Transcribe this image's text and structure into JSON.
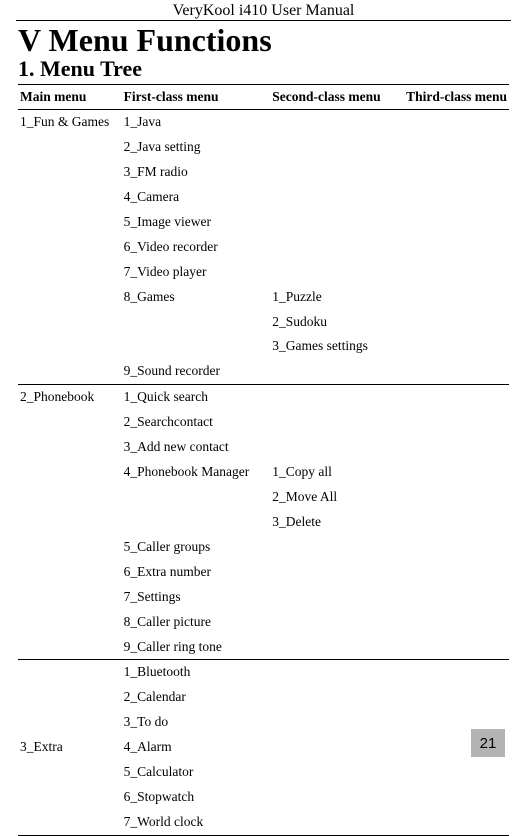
{
  "doc_header": "VeryKool i410 User Manual",
  "chapter_title": "V Menu Functions",
  "section_title": "1. Menu Tree",
  "page_number": "21",
  "table": {
    "headers": [
      "Main menu",
      "First-class menu",
      "Second-class menu",
      "Third-class menu"
    ],
    "rows": [
      {
        "main": "1_Fun & Games",
        "first": "1_Java",
        "second": "",
        "third": ""
      },
      {
        "main": "",
        "first": "2_Java setting",
        "second": "",
        "third": ""
      },
      {
        "main": "",
        "first": "3_FM radio",
        "second": "",
        "third": ""
      },
      {
        "main": "",
        "first": "4_Camera",
        "second": "",
        "third": ""
      },
      {
        "main": "",
        "first": "5_Image viewer",
        "second": "",
        "third": ""
      },
      {
        "main": "",
        "first": "6_Video recorder",
        "second": "",
        "third": ""
      },
      {
        "main": "",
        "first": "7_Video player",
        "second": "",
        "third": ""
      },
      {
        "main": "",
        "first": "8_Games",
        "second": "1_Puzzle",
        "third": ""
      },
      {
        "main": "",
        "first": "",
        "second": "2_Sudoku",
        "third": ""
      },
      {
        "main": "",
        "first": "",
        "second": "3_Games settings",
        "third": ""
      },
      {
        "main": "",
        "first": "9_Sound recorder",
        "second": "",
        "third": "",
        "sectionEnd": true
      },
      {
        "main": "2_Phonebook",
        "first": "1_Quick search",
        "second": "",
        "third": ""
      },
      {
        "main": "",
        "first": "2_Searchcontact",
        "second": "",
        "third": ""
      },
      {
        "main": "",
        "first": "3_Add new contact",
        "second": "",
        "third": ""
      },
      {
        "main": "",
        "first": "4_Phonebook Manager",
        "second": "1_Copy all",
        "third": ""
      },
      {
        "main": "",
        "first": "",
        "second": "2_Move All",
        "third": ""
      },
      {
        "main": "",
        "first": "",
        "second": "3_Delete",
        "third": ""
      },
      {
        "main": "",
        "first": "5_Caller groups",
        "second": "",
        "third": ""
      },
      {
        "main": "",
        "first": "6_Extra number",
        "second": "",
        "third": ""
      },
      {
        "main": "",
        "first": "7_Settings",
        "second": "",
        "third": ""
      },
      {
        "main": "",
        "first": "8_Caller picture",
        "second": "",
        "third": ""
      },
      {
        "main": "",
        "first": "9_Caller ring tone",
        "second": "",
        "third": "",
        "sectionEnd": true
      },
      {
        "main": "",
        "first": "1_Bluetooth",
        "second": "",
        "third": ""
      },
      {
        "main": "",
        "first": "2_Calendar",
        "second": "",
        "third": ""
      },
      {
        "main": "",
        "first": "3_To do",
        "second": "",
        "third": ""
      },
      {
        "main": "3_Extra",
        "first": "4_Alarm",
        "second": "",
        "third": ""
      },
      {
        "main": "",
        "first": "5_Calculator",
        "second": "",
        "third": ""
      },
      {
        "main": "",
        "first": "6_Stopwatch",
        "second": "",
        "third": ""
      },
      {
        "main": "",
        "first": "7_World clock",
        "second": "",
        "third": ""
      }
    ]
  }
}
